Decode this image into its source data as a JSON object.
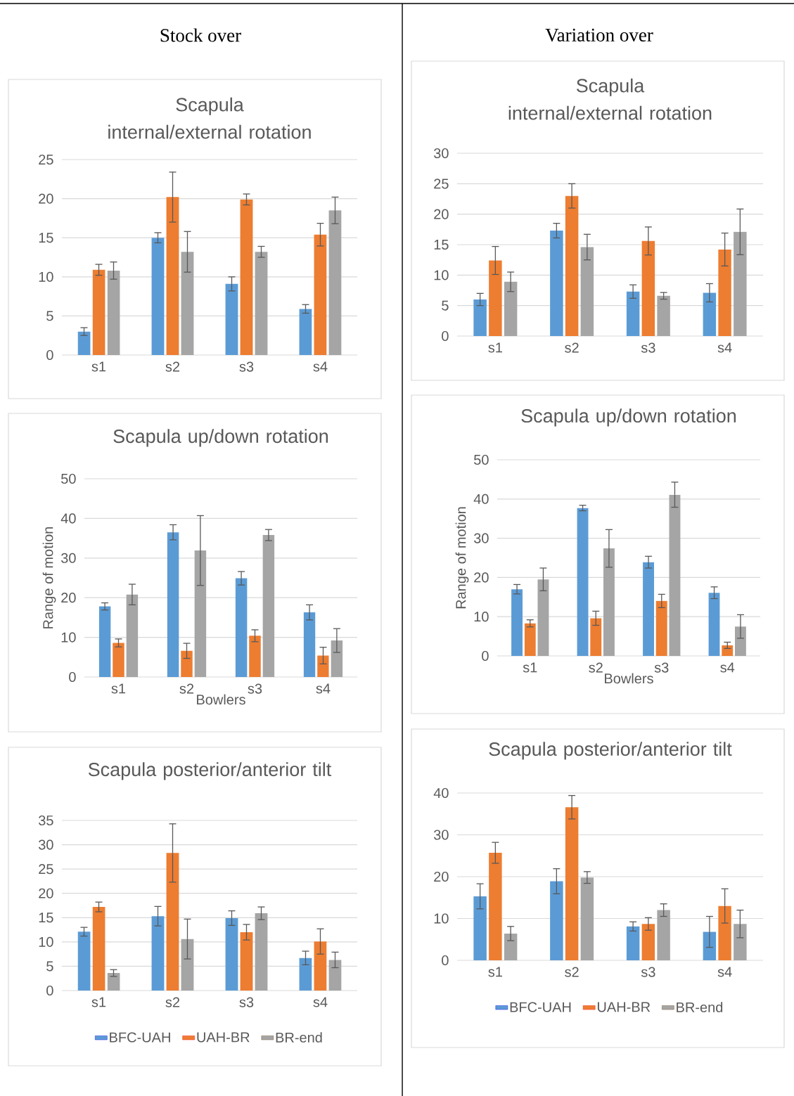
{
  "chart_data": [
    {
      "type": "other",
      "title": "Stock over"
    },
    {
      "type": "bar",
      "title": "Scapula internal/external rotation",
      "categories": [
        "s1",
        "s2",
        "s3",
        "s4"
      ],
      "ylim": [
        0,
        25
      ],
      "yticks": [
        0,
        5,
        10,
        15,
        20,
        25
      ],
      "grid": "y",
      "legend": false,
      "series": [
        {
          "color": "#5b9bd5",
          "values": [
            3.0,
            15.0,
            9.1,
            5.9
          ],
          "errors": [
            0.5,
            0.65,
            0.9,
            0.55
          ]
        },
        {
          "color": "#ed7d31",
          "values": [
            10.9,
            20.2,
            19.9,
            15.4
          ],
          "errors": [
            0.7,
            3.2,
            0.7,
            1.45
          ]
        },
        {
          "color": "#a5a5a5",
          "values": [
            10.8,
            13.2,
            13.2,
            18.5
          ],
          "errors": [
            1.1,
            2.6,
            0.7,
            1.7
          ]
        }
      ]
    },
    {
      "type": "bar",
      "title": "Scapula up/down rotation",
      "xlabel": "Bowlers",
      "ylabel": "Range of motion",
      "categories": [
        "s1",
        "s2",
        "s3",
        "s4"
      ],
      "ylim": [
        0,
        50
      ],
      "yticks": [
        0,
        10,
        20,
        30,
        40,
        50
      ],
      "grid": "y",
      "legend": false,
      "series": [
        {
          "color": "#5b9bd5",
          "values": [
            17.8,
            36.5,
            24.9,
            16.3
          ],
          "errors": [
            0.9,
            1.9,
            1.7,
            1.9
          ]
        },
        {
          "color": "#ed7d31",
          "values": [
            8.6,
            6.6,
            10.4,
            5.4
          ],
          "errors": [
            1.0,
            1.9,
            1.5,
            2.1
          ]
        },
        {
          "color": "#a5a5a5",
          "values": [
            20.8,
            31.9,
            35.8,
            9.2
          ],
          "errors": [
            2.6,
            8.8,
            1.4,
            3.0
          ]
        }
      ]
    },
    {
      "type": "bar",
      "title": "Scapula posterior/anterior tilt",
      "categories": [
        "s1",
        "s2",
        "s3",
        "s4"
      ],
      "ylim": [
        0,
        35
      ],
      "yticks": [
        0,
        5,
        10,
        15,
        20,
        25,
        30,
        35
      ],
      "grid": "y",
      "legend": "bottom",
      "series": [
        {
          "name": "BFC-UAH",
          "color": "#5b9bd5",
          "values": [
            12.1,
            15.3,
            14.9,
            6.7
          ],
          "errors": [
            0.9,
            2.0,
            1.5,
            1.4
          ]
        },
        {
          "name": "UAH-BR",
          "color": "#ed7d31",
          "values": [
            17.2,
            28.3,
            12.0,
            10.1
          ],
          "errors": [
            1.0,
            6.0,
            1.6,
            2.6
          ]
        },
        {
          "name": "BR-end",
          "color": "#a5a5a5",
          "values": [
            3.6,
            10.6,
            15.9,
            6.3
          ],
          "errors": [
            0.7,
            4.1,
            1.3,
            1.6
          ]
        }
      ]
    },
    {
      "type": "other",
      "title": "Variation over"
    },
    {
      "type": "bar",
      "title": "Scapula internal/external rotation",
      "categories": [
        "s1",
        "s2",
        "s3",
        "s4"
      ],
      "ylim": [
        0,
        30
      ],
      "yticks": [
        0,
        5,
        10,
        15,
        20,
        25,
        30
      ],
      "grid": "y",
      "legend": false,
      "series": [
        {
          "color": "#5b9bd5",
          "values": [
            6.0,
            17.3,
            7.3,
            7.1
          ],
          "errors": [
            1.0,
            1.2,
            1.1,
            1.5
          ]
        },
        {
          "color": "#ed7d31",
          "values": [
            12.4,
            23.0,
            15.6,
            14.2
          ],
          "errors": [
            2.3,
            2.0,
            2.3,
            2.7
          ]
        },
        {
          "color": "#a5a5a5",
          "values": [
            8.9,
            14.6,
            6.6,
            17.1
          ],
          "errors": [
            1.6,
            2.1,
            0.55,
            3.75
          ]
        }
      ]
    },
    {
      "type": "bar",
      "title": "Scapula up/down rotation",
      "xlabel": "Bowlers",
      "ylabel": "Range of motion",
      "categories": [
        "s1",
        "s2",
        "s3",
        "s4"
      ],
      "ylim": [
        0,
        50
      ],
      "yticks": [
        0,
        10,
        20,
        30,
        40,
        50
      ],
      "grid": "y",
      "legend": false,
      "series": [
        {
          "color": "#5b9bd5",
          "values": [
            17.0,
            37.7,
            23.9,
            16.1
          ],
          "errors": [
            1.2,
            0.7,
            1.5,
            1.5
          ]
        },
        {
          "color": "#ed7d31",
          "values": [
            8.3,
            9.6,
            14.0,
            2.7
          ],
          "errors": [
            0.9,
            1.8,
            1.7,
            0.8
          ]
        },
        {
          "color": "#a5a5a5",
          "values": [
            19.5,
            27.4,
            41.1,
            7.5
          ],
          "errors": [
            2.9,
            4.8,
            3.2,
            3.0
          ]
        }
      ]
    },
    {
      "type": "bar",
      "title": "Scapula posterior/anterior tilt",
      "categories": [
        "s1",
        "s2",
        "s3",
        "s4"
      ],
      "ylim": [
        0,
        40
      ],
      "yticks": [
        0,
        10,
        20,
        30,
        40
      ],
      "grid": "y",
      "legend": "bottom",
      "series": [
        {
          "name": "BFC-UAH",
          "color": "#5b9bd5",
          "values": [
            15.3,
            18.9,
            8.1,
            6.8
          ],
          "errors": [
            3.0,
            3.0,
            1.1,
            3.7
          ]
        },
        {
          "name": "UAH-BR",
          "color": "#ed7d31",
          "values": [
            25.7,
            36.6,
            8.7,
            13.0
          ],
          "errors": [
            2.5,
            2.8,
            1.5,
            4.1
          ]
        },
        {
          "name": "BR-end",
          "color": "#a5a5a5",
          "values": [
            6.4,
            19.8,
            12.0,
            8.7
          ],
          "errors": [
            1.7,
            1.4,
            1.5,
            3.3
          ]
        }
      ]
    }
  ]
}
